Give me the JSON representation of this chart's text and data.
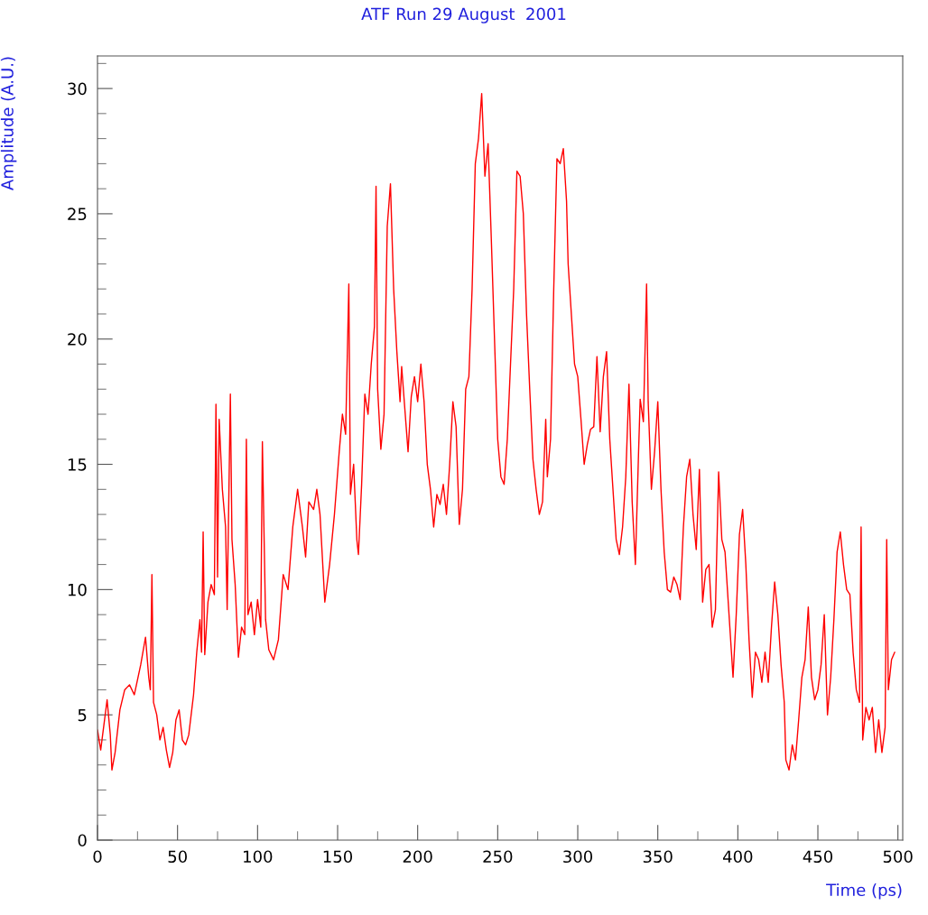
{
  "chart_data": {
    "type": "line",
    "title": "ATF Run 29 August  2001",
    "xlabel": "Time (ps)",
    "ylabel": "Amplitude (A.U.)",
    "xlim": [
      0,
      503
    ],
    "ylim": [
      0,
      31.3
    ],
    "xticks": [
      0,
      {
        "value": 25,
        "label": null
      },
      50,
      {
        "value": 75,
        "label": null
      },
      100,
      {
        "value": 125,
        "label": null
      },
      150,
      {
        "value": 175,
        "label": null
      },
      200,
      {
        "value": 225,
        "label": null
      },
      250,
      {
        "value": 275,
        "label": null
      },
      300,
      {
        "value": 325,
        "label": null
      },
      350,
      {
        "value": 375,
        "label": null
      },
      400,
      {
        "value": 425,
        "label": null
      },
      450,
      {
        "value": 475,
        "label": null
      },
      500
    ],
    "yticks": [
      0,
      {
        "value": 1,
        "label": null
      },
      {
        "value": 2,
        "label": null
      },
      {
        "value": 3,
        "label": null
      },
      {
        "value": 4,
        "label": null
      },
      5,
      {
        "value": 6,
        "label": null
      },
      {
        "value": 7,
        "label": null
      },
      {
        "value": 8,
        "label": null
      },
      {
        "value": 9,
        "label": null
      },
      10,
      {
        "value": 11,
        "label": null
      },
      {
        "value": 12,
        "label": null
      },
      {
        "value": 13,
        "label": null
      },
      {
        "value": 14,
        "label": null
      },
      15,
      {
        "value": 16,
        "label": null
      },
      {
        "value": 17,
        "label": null
      },
      {
        "value": 18,
        "label": null
      },
      {
        "value": 19,
        "label": null
      },
      20,
      {
        "value": 21,
        "label": null
      },
      {
        "value": 22,
        "label": null
      },
      {
        "value": 23,
        "label": null
      },
      {
        "value": 24,
        "label": null
      },
      25,
      {
        "value": 26,
        "label": null
      },
      {
        "value": 27,
        "label": null
      },
      {
        "value": 28,
        "label": null
      },
      {
        "value": 29,
        "label": null
      },
      30,
      {
        "value": 31,
        "label": null
      }
    ],
    "grid": false,
    "legend": false,
    "marker": "none",
    "line_style": "solid",
    "series": [
      {
        "color": "#ff0000",
        "x": [
          0,
          2,
          4,
          6,
          8,
          9,
          11,
          14,
          17,
          20,
          23,
          27,
          30,
          32,
          33,
          34,
          35,
          37,
          39,
          41,
          43,
          45,
          47,
          49,
          51,
          53,
          55,
          57,
          60,
          62,
          64,
          65,
          66,
          67,
          69,
          71,
          73,
          74,
          75,
          76,
          78,
          80,
          81,
          83,
          84,
          86,
          88,
          90,
          92,
          93,
          94,
          96,
          98,
          100,
          102,
          103,
          105,
          107,
          110,
          113,
          116,
          119,
          122,
          125,
          128,
          130,
          132,
          135,
          137,
          139,
          142,
          145,
          148,
          151,
          153,
          155,
          157,
          158,
          160,
          162,
          163,
          165,
          167,
          169,
          171,
          173,
          174,
          175,
          177,
          179,
          181,
          183,
          185,
          187,
          189,
          190,
          192,
          194,
          196,
          198,
          200,
          202,
          204,
          206,
          208,
          210,
          212,
          214,
          216,
          218,
          220,
          222,
          224,
          226,
          228,
          230,
          232,
          234,
          236,
          238,
          240,
          242,
          244,
          246,
          248,
          250,
          252,
          254,
          256,
          258,
          260,
          262,
          264,
          266,
          268,
          270,
          272,
          274,
          276,
          278,
          280,
          281,
          283,
          285,
          287,
          289,
          291,
          293,
          294,
          296,
          298,
          300,
          302,
          304,
          306,
          308,
          310,
          312,
          314,
          316,
          318,
          320,
          322,
          324,
          326,
          328,
          330,
          332,
          334,
          336,
          338,
          339,
          341,
          343,
          344,
          346,
          348,
          350,
          352,
          354,
          356,
          358,
          360,
          362,
          364,
          366,
          368,
          370,
          372,
          374,
          376,
          378,
          380,
          382,
          384,
          386,
          388,
          390,
          392,
          394,
          396,
          397,
          399,
          401,
          403,
          405,
          407,
          409,
          411,
          413,
          415,
          417,
          419,
          421,
          423,
          425,
          427,
          429,
          430,
          432,
          434,
          436,
          438,
          440,
          442,
          444,
          446,
          448,
          450,
          452,
          454,
          456,
          458,
          460,
          462,
          464,
          466,
          468,
          470,
          472,
          474,
          476,
          477,
          478,
          480,
          482,
          484,
          486,
          488,
          490,
          492,
          493,
          494,
          496,
          498
        ],
        "values": [
          4.4,
          3.6,
          4.6,
          5.6,
          4.2,
          2.8,
          3.5,
          5.2,
          6.0,
          6.2,
          5.8,
          7.0,
          8.1,
          6.5,
          6.0,
          10.6,
          5.5,
          5.0,
          4.0,
          4.5,
          3.6,
          2.9,
          3.5,
          4.8,
          5.2,
          4.0,
          3.8,
          4.2,
          5.8,
          7.5,
          8.8,
          7.5,
          12.3,
          7.4,
          9.5,
          10.2,
          9.8,
          17.4,
          10.5,
          16.8,
          14.0,
          12.5,
          9.2,
          17.8,
          12.0,
          10.2,
          7.3,
          8.5,
          8.2,
          16.0,
          9.0,
          9.5,
          8.2,
          9.6,
          8.5,
          15.9,
          8.8,
          7.6,
          7.2,
          8.0,
          10.6,
          10.0,
          12.5,
          14.0,
          12.5,
          11.3,
          13.5,
          13.2,
          14.0,
          13.0,
          9.5,
          11.0,
          13.0,
          15.5,
          17.0,
          16.2,
          22.2,
          13.8,
          15.0,
          12.0,
          11.4,
          14.2,
          17.8,
          17.0,
          19.0,
          20.5,
          26.1,
          18.0,
          15.6,
          17.0,
          24.5,
          26.2,
          22.0,
          19.5,
          17.5,
          18.9,
          17.2,
          15.5,
          17.7,
          18.5,
          17.5,
          19.0,
          17.5,
          15.0,
          14.0,
          12.5,
          13.8,
          13.4,
          14.2,
          13.0,
          15.0,
          17.5,
          16.5,
          12.6,
          14.0,
          18.0,
          18.5,
          22.0,
          27.0,
          28.0,
          29.8,
          26.5,
          27.8,
          24.0,
          20.0,
          16.0,
          14.5,
          14.2,
          16.0,
          19.0,
          22.0,
          26.7,
          26.5,
          25.0,
          21.0,
          18.0,
          15.2,
          14.0,
          13.0,
          13.5,
          16.8,
          14.5,
          16.0,
          22.0,
          27.2,
          27.0,
          27.6,
          25.5,
          23.0,
          21.0,
          19.0,
          18.5,
          16.8,
          15.0,
          15.8,
          16.4,
          16.5,
          19.3,
          16.3,
          18.5,
          19.5,
          16.0,
          14.0,
          12.0,
          11.4,
          12.5,
          14.5,
          18.2,
          13.5,
          11.0,
          15.5,
          17.6,
          16.7,
          22.2,
          17.5,
          14.0,
          15.5,
          17.5,
          14.0,
          11.5,
          10.0,
          9.9,
          10.5,
          10.2,
          9.6,
          12.5,
          14.5,
          15.2,
          13.0,
          11.6,
          14.8,
          9.5,
          10.8,
          11.0,
          8.5,
          9.2,
          14.7,
          12.0,
          11.5,
          9.5,
          7.5,
          6.5,
          9.0,
          12.2,
          13.2,
          11.0,
          8.0,
          5.7,
          7.5,
          7.2,
          6.3,
          7.5,
          6.3,
          8.5,
          10.3,
          9.0,
          7.0,
          5.5,
          3.2,
          2.8,
          3.8,
          3.2,
          4.8,
          6.5,
          7.2,
          9.3,
          6.5,
          5.6,
          6.0,
          7.0,
          9.0,
          5.0,
          6.5,
          8.8,
          11.5,
          12.3,
          11.0,
          10.0,
          9.8,
          7.5,
          6.0,
          5.5,
          12.5,
          4.0,
          5.3,
          4.8,
          5.3,
          3.5,
          4.8,
          3.5,
          4.5,
          12.0,
          6.0,
          7.2,
          7.5
        ]
      }
    ]
  }
}
